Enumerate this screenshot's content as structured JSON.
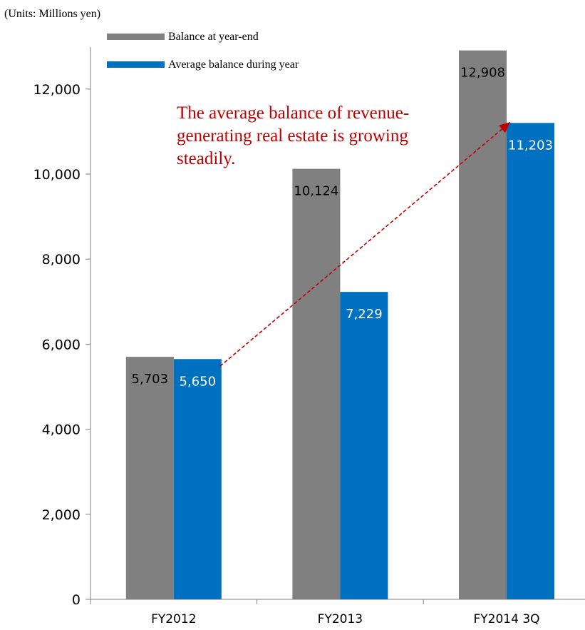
{
  "chart_data": {
    "type": "bar",
    "units_note": "(Units: Millions yen)",
    "categories": [
      "FY2012",
      "FY2013",
      "FY2014 3Q"
    ],
    "series": [
      {
        "name": "Balance at year-end",
        "values": [
          5703,
          10124,
          12908
        ],
        "labels": [
          "5,703",
          "10,124",
          "12,908"
        ],
        "color": "#808080",
        "label_color": "#000000"
      },
      {
        "name": "Average balance during year",
        "values": [
          5650,
          7229,
          11203
        ],
        "labels": [
          "5,650",
          "7,229",
          "11,203"
        ],
        "color": "#0070C0",
        "label_color": "#ffffff"
      }
    ],
    "y_ticks": [
      0,
      2000,
      4000,
      6000,
      8000,
      10000,
      12000
    ],
    "y_tick_labels": [
      "0",
      "2,000",
      "4,000",
      "6,000",
      "8,000",
      "10,000",
      "12,000"
    ],
    "ylim": [
      0,
      12908
    ],
    "grid": false,
    "legend_position": "top-left",
    "annotation": {
      "lines": [
        "The average balance of revenue-",
        "generating real estate is growing",
        "steadily."
      ],
      "color": "#C00000",
      "arrow_from": {
        "category": "FY2012",
        "series": 1,
        "value": 5650
      },
      "arrow_to": {
        "category": "FY2014 3Q",
        "series": 1,
        "value": 11203
      }
    }
  }
}
